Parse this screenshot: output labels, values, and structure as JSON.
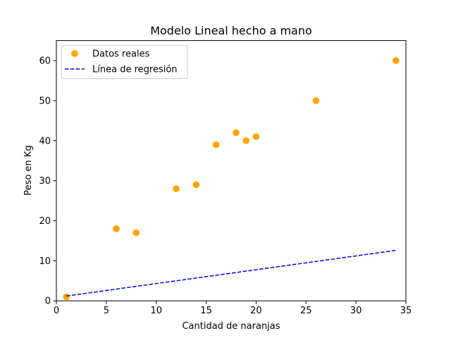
{
  "chart_data": {
    "type": "scatter",
    "title": "Modelo Lineal hecho a mano",
    "xlabel": "Cantidad de naranjas",
    "ylabel": "Peso en Kg",
    "xlim": [
      0,
      35
    ],
    "ylim": [
      0,
      65
    ],
    "xticks": [
      0,
      5,
      10,
      15,
      20,
      25,
      30,
      35
    ],
    "yticks": [
      0,
      10,
      20,
      30,
      40,
      50,
      60
    ],
    "grid": false,
    "legend_position": "top-left",
    "series": [
      {
        "name": "Datos reales",
        "kind": "scatter",
        "color": "#ffa500",
        "x": [
          1,
          6,
          8,
          12,
          14,
          16,
          18,
          19,
          20,
          26,
          34
        ],
        "y": [
          1,
          18,
          17,
          28,
          29,
          39,
          42,
          40,
          41,
          50,
          60
        ]
      },
      {
        "name": "Línea de regresión",
        "kind": "line",
        "style": "dashed",
        "color": "#0000ff",
        "x": [
          1,
          34
        ],
        "y": [
          1.2,
          12.6
        ]
      }
    ]
  }
}
